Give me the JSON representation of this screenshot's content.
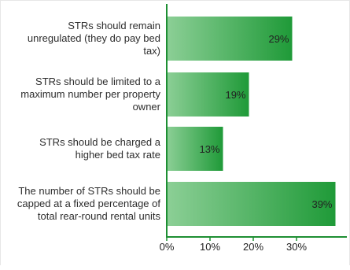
{
  "chart_data": {
    "type": "bar",
    "orientation": "horizontal",
    "categories": [
      [
        "STRs should remain",
        "unregulated (they do pay bed",
        "tax)"
      ],
      [
        "STRs should be limited to a",
        "maximum number per property",
        "owner"
      ],
      [
        "STRs should be charged a",
        "higher bed tax rate"
      ],
      [
        "The number of STRs should be",
        "capped at a fixed percentage of",
        "total rear-round rental units"
      ]
    ],
    "values": [
      29,
      19,
      13,
      39
    ],
    "value_labels": [
      "29%",
      "19%",
      "13%",
      "39%"
    ],
    "x_ticks": [
      0,
      10,
      20,
      30
    ],
    "x_tick_labels": [
      "0%",
      "10%",
      "20%",
      "30%"
    ],
    "xlim": [
      0,
      39
    ],
    "grid": false,
    "colors": {
      "bar_light": "#8ccf96",
      "bar_dark": "#1f9a38",
      "axis": "#1e8f33",
      "text": "#222222",
      "label_text": "#2d2d2d"
    }
  }
}
